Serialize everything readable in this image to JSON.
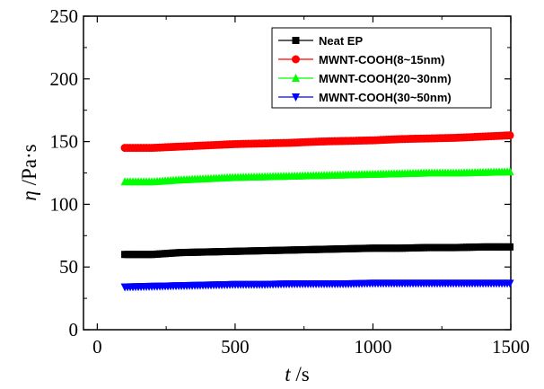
{
  "chart_data": {
    "type": "scatter",
    "xlabel": {
      "var": "t",
      "unit": " /s"
    },
    "ylabel": {
      "var": "η",
      "unit": " /Pa·s"
    },
    "xlim": [
      -50,
      1500
    ],
    "ylim": [
      0,
      250
    ],
    "x_ticks": [
      0,
      500,
      1000,
      1500
    ],
    "y_ticks": [
      0,
      50,
      100,
      150,
      200,
      250
    ],
    "x_range": [
      100,
      1500
    ],
    "legend_position": "top-right",
    "grid": false,
    "series": [
      {
        "name": "Neat EP",
        "color": "#000000",
        "marker": "square",
        "x": [
          100,
          200,
          300,
          400,
          500,
          600,
          700,
          800,
          900,
          1000,
          1100,
          1200,
          1300,
          1400,
          1500
        ],
        "y": [
          60,
          60,
          61.5,
          62,
          62.5,
          63,
          63.5,
          64,
          64.5,
          65,
          65,
          65.5,
          65.5,
          66,
          66
        ]
      },
      {
        "name": "MWNT-COOH(8~15nm)",
        "color": "#ff0000",
        "marker": "circle",
        "x": [
          100,
          200,
          300,
          400,
          500,
          600,
          700,
          800,
          900,
          1000,
          1100,
          1200,
          1300,
          1400,
          1500
        ],
        "y": [
          145,
          145,
          146,
          147,
          148,
          148.5,
          149,
          150,
          150.5,
          151,
          152,
          152.5,
          153,
          154,
          155
        ]
      },
      {
        "name": "MWNT-COOH(20~30nm)",
        "color": "#00ff00",
        "marker": "triangle-up",
        "x": [
          100,
          200,
          300,
          400,
          500,
          600,
          700,
          800,
          900,
          1000,
          1100,
          1200,
          1300,
          1400,
          1500
        ],
        "y": [
          118,
          118,
          119.5,
          120.5,
          121.5,
          122,
          122.5,
          123,
          123.5,
          124,
          124.5,
          125,
          125,
          125.5,
          126
        ]
      },
      {
        "name": "MWNT-COOH(30~50nm)",
        "color": "#0000ff",
        "marker": "triangle-down",
        "x": [
          100,
          200,
          300,
          400,
          500,
          600,
          700,
          800,
          900,
          1000,
          1100,
          1200,
          1300,
          1400,
          1500
        ],
        "y": [
          34,
          34.5,
          35,
          35.5,
          36,
          36,
          36.5,
          36.5,
          36.5,
          37,
          37,
          37,
          37,
          37,
          37
        ]
      }
    ]
  }
}
